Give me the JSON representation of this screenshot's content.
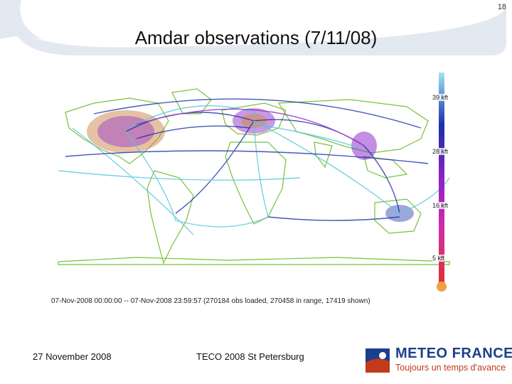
{
  "slide": {
    "page_number": "18",
    "title": "Amdar observations (7/11/08)"
  },
  "map": {
    "altitude_labels": [
      "39 kft",
      "28 kft",
      "16 kft",
      "5 kft"
    ],
    "caption": "07-Nov-2008 00:00:00 -- 07-Nov-2008 23:59:57 (270184 obs loaded, 270458 in range, 17419 shown)"
  },
  "footer": {
    "date": "27  November  2008",
    "event": "TECO 2008 St Petersburg",
    "logo_name": "METEO FRANCE",
    "logo_tagline": "Toujours un temps d'avance"
  },
  "colors": {
    "banner": "#e3e9f1",
    "track_dark": "#1a2fa8",
    "track_light": "#57c6df",
    "track_purple": "#8a22c4",
    "coast": "#78c23e",
    "logo_blue": "#1d3f8a",
    "logo_red": "#c33a1b"
  }
}
